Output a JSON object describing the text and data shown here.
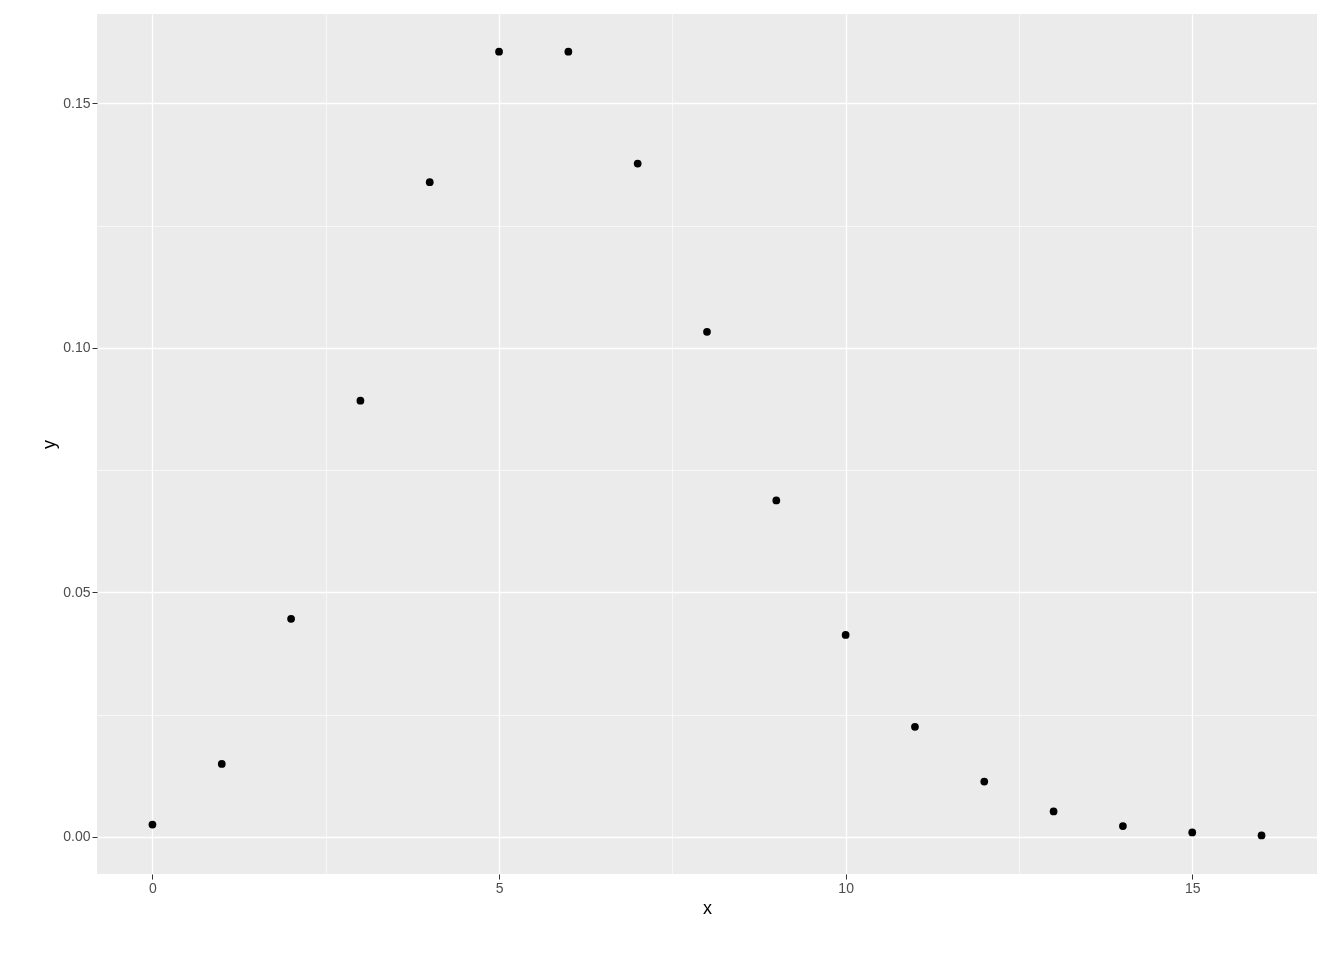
{
  "chart_data": {
    "type": "scatter",
    "xlabel": "x",
    "ylabel": "y",
    "x": [
      0,
      1,
      2,
      3,
      4,
      5,
      6,
      7,
      8,
      9,
      10,
      11,
      12,
      13,
      14,
      15,
      16
    ],
    "series": [
      {
        "color": "#000000",
        "values": [
          0.0025,
          0.0149,
          0.0446,
          0.0892,
          0.1339,
          0.1606,
          0.1606,
          0.1377,
          0.1033,
          0.0688,
          0.0413,
          0.0225,
          0.0113,
          0.0052,
          0.0022,
          0.0009,
          0.0003
        ]
      }
    ],
    "xlim": [
      -0.8,
      16.8
    ],
    "ylim": [
      -0.0076,
      0.1683
    ],
    "xticks": [
      0,
      {
        "value": 2.5,
        "label": null
      },
      5,
      {
        "value": 7.5,
        "label": null
      },
      10,
      {
        "value": 12.5,
        "label": null
      },
      15
    ],
    "yticks": [
      {
        "value": 0,
        "label": "0.00"
      },
      {
        "value": 0.025,
        "label": null
      },
      {
        "value": 0.05,
        "label": "0.05"
      },
      {
        "value": 0.075,
        "label": null
      },
      {
        "value": 0.1,
        "label": "0.10"
      },
      {
        "value": 0.125,
        "label": null
      },
      {
        "value": 0.15,
        "label": "0.15"
      }
    ],
    "grid": true,
    "marker": "circle"
  }
}
